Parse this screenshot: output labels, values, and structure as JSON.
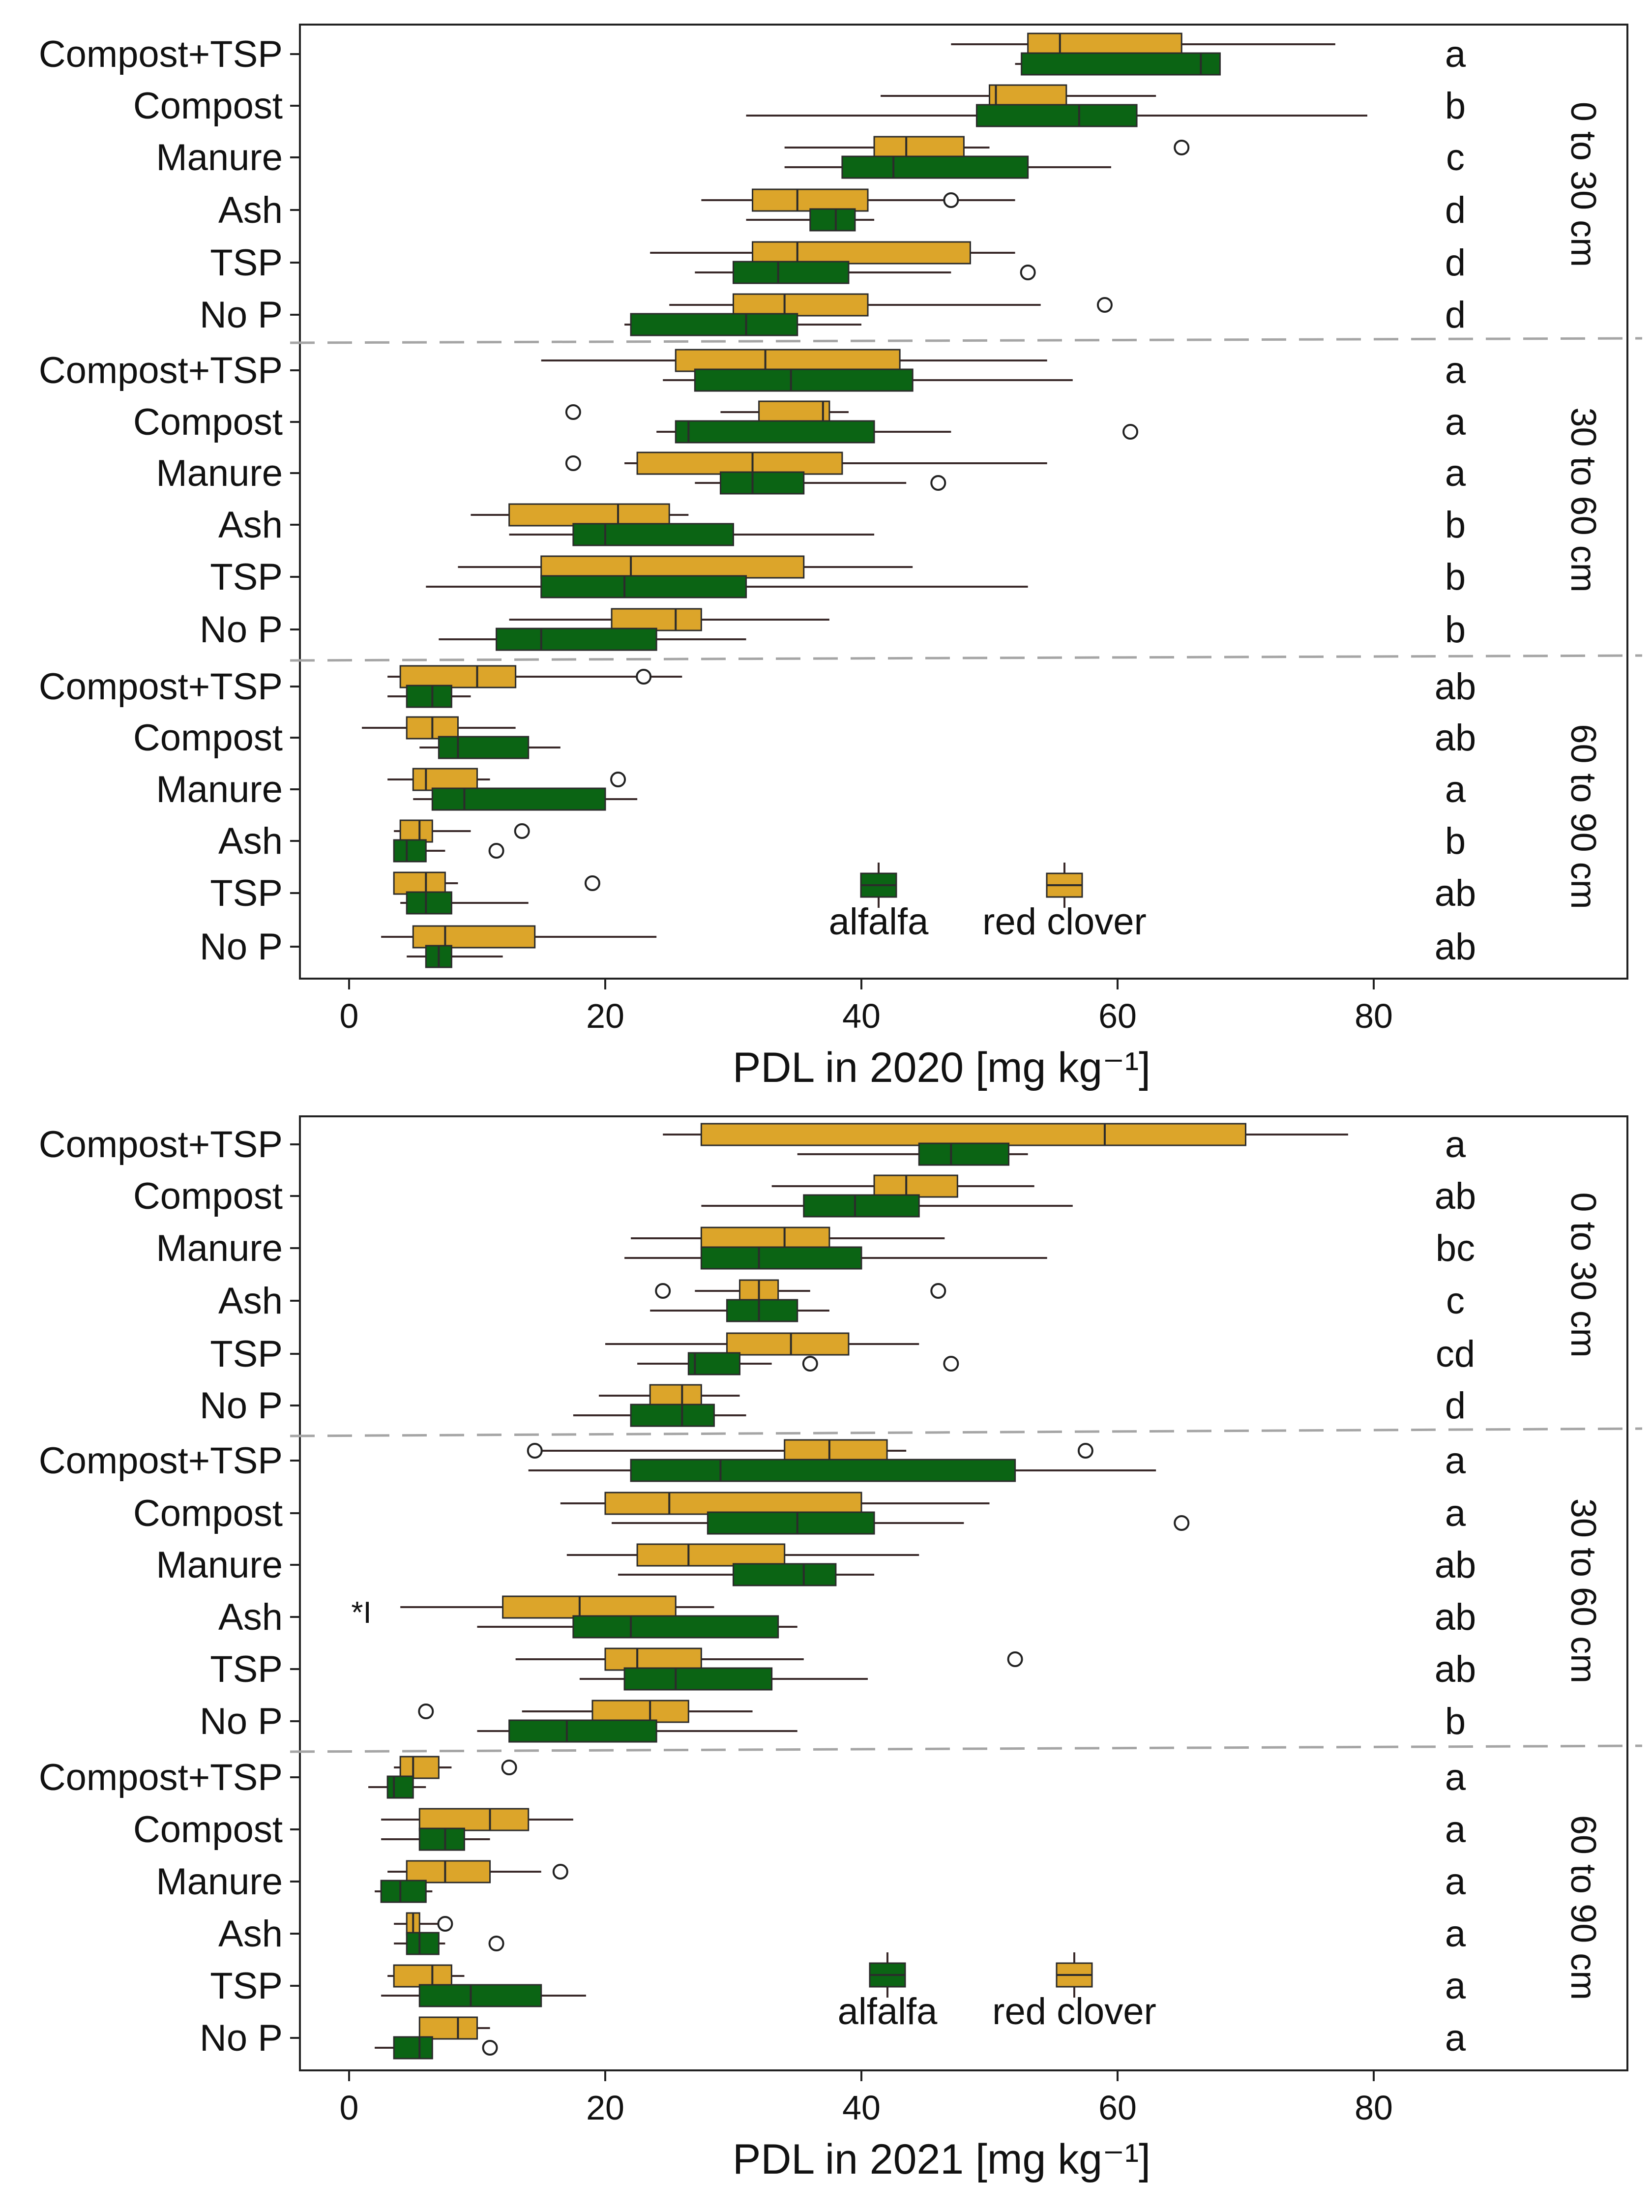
{
  "colors": {
    "alfalfa": "#0b6414",
    "red_clover": "#dca52a",
    "box_outline": "#2b2b2b",
    "whisker": "#3a2a2a",
    "dashed_separator": "#a5a5a5",
    "panel_border": "#222222"
  },
  "chart_data": [
    {
      "type": "boxplot",
      "orientation": "horizontal",
      "xlabel": "PDL in 2020 [mg kg⁻¹]",
      "xlim": [
        -5,
        100
      ],
      "xticks": [
        0,
        20,
        40,
        60,
        80
      ],
      "grid": false,
      "legend": {
        "position": "bottom-right",
        "entries": [
          "alfalfa",
          "red clover"
        ]
      },
      "categories": [
        "Compost+TSP",
        "Compost",
        "Manure",
        "Ash",
        "TSP",
        "No P"
      ],
      "depth_groups": [
        {
          "label": "0 to 30 cm",
          "letters": [
            "a",
            "b",
            "c",
            "d",
            "d",
            "d"
          ],
          "alfalfa": [
            {
              "whislo": 52,
              "q1": 52.5,
              "med": 66.5,
              "q3": 68,
              "whishi": 68,
              "fliers": []
            },
            {
              "whislo": 31,
              "q1": 49,
              "med": 57,
              "q3": 61.5,
              "whishi": 79.5,
              "fliers": []
            },
            {
              "whislo": 34,
              "q1": 38.5,
              "med": 42.5,
              "q3": 53,
              "whishi": 59.5,
              "fliers": []
            },
            {
              "whislo": 31,
              "q1": 36,
              "med": 38,
              "q3": 39.5,
              "whishi": 41,
              "fliers": []
            },
            {
              "whislo": 27,
              "q1": 30,
              "med": 33.5,
              "q3": 39,
              "whishi": 47,
              "fliers": [
                53
              ]
            },
            {
              "whislo": 21.5,
              "q1": 22,
              "med": 31,
              "q3": 35,
              "whishi": 40,
              "fliers": []
            }
          ],
          "red_clover": [
            {
              "whislo": 47,
              "q1": 53,
              "med": 55.5,
              "q3": 65,
              "whishi": 77,
              "fliers": []
            },
            {
              "whislo": 41.5,
              "q1": 50,
              "med": 50.5,
              "q3": 56,
              "whishi": 63,
              "fliers": []
            },
            {
              "whislo": 34,
              "q1": 41,
              "med": 43.5,
              "q3": 48,
              "whishi": 50,
              "fliers": [
                65
              ]
            },
            {
              "whislo": 27.5,
              "q1": 31.5,
              "med": 35,
              "q3": 40.5,
              "whishi": 52,
              "fliers": [
                47
              ]
            },
            {
              "whislo": 23.5,
              "q1": 31.5,
              "med": 35,
              "q3": 48.5,
              "whishi": 52,
              "fliers": []
            },
            {
              "whislo": 25,
              "q1": 30,
              "med": 34,
              "q3": 40.5,
              "whishi": 54,
              "fliers": [
                59
              ]
            }
          ]
        },
        {
          "label": "30 to 60 cm",
          "letters": [
            "a",
            "a",
            "a",
            "b",
            "b",
            "b"
          ],
          "alfalfa": [
            {
              "whislo": 24.5,
              "q1": 27,
              "med": 34.5,
              "q3": 44,
              "whishi": 56.5,
              "fliers": []
            },
            {
              "whislo": 24,
              "q1": 25.5,
              "med": 26.5,
              "q3": 41,
              "whishi": 47,
              "fliers": [
                61
              ]
            },
            {
              "whislo": 27,
              "q1": 29,
              "med": 31.5,
              "q3": 35.5,
              "whishi": 43.5,
              "fliers": [
                46
              ]
            },
            {
              "whislo": 12.5,
              "q1": 17.5,
              "med": 20,
              "q3": 30,
              "whishi": 41,
              "fliers": []
            },
            {
              "whislo": 6,
              "q1": 15,
              "med": 21.5,
              "q3": 31,
              "whishi": 53,
              "fliers": []
            },
            {
              "whislo": 7,
              "q1": 11.5,
              "med": 15,
              "q3": 24,
              "whishi": 31,
              "fliers": []
            }
          ],
          "red_clover": [
            {
              "whislo": 15,
              "q1": 25.5,
              "med": 32.5,
              "q3": 43,
              "whishi": 54.5,
              "fliers": []
            },
            {
              "whislo": 29,
              "q1": 32,
              "med": 37,
              "q3": 37.5,
              "whishi": 39,
              "fliers": [
                17.5
              ]
            },
            {
              "whislo": 21.5,
              "q1": 22.5,
              "med": 31.5,
              "q3": 38.5,
              "whishi": 54.5,
              "fliers": [
                17.5
              ]
            },
            {
              "whislo": 9.5,
              "q1": 12.5,
              "med": 21,
              "q3": 25,
              "whishi": 26.5,
              "fliers": []
            },
            {
              "whislo": 8.5,
              "q1": 15,
              "med": 22,
              "q3": 35.5,
              "whishi": 44,
              "fliers": []
            },
            {
              "whislo": 12.5,
              "q1": 20.5,
              "med": 25.5,
              "q3": 27.5,
              "whishi": 37.5,
              "fliers": []
            }
          ]
        },
        {
          "label": "60 to 90 cm",
          "letters": [
            "ab",
            "ab",
            "a",
            "b",
            "ab",
            "ab"
          ],
          "alfalfa": [
            {
              "whislo": 3,
              "q1": 4.5,
              "med": 6.5,
              "q3": 8,
              "whishi": 9.5,
              "fliers": []
            },
            {
              "whislo": 5.5,
              "q1": 7,
              "med": 8.5,
              "q3": 14,
              "whishi": 16.5,
              "fliers": []
            },
            {
              "whislo": 5,
              "q1": 6.5,
              "med": 9,
              "q3": 20,
              "whishi": 22.5,
              "fliers": []
            },
            {
              "whislo": 3.5,
              "q1": 3.5,
              "med": 4.5,
              "q3": 6,
              "whishi": 7.5,
              "fliers": [
                11.5
              ]
            },
            {
              "whislo": 4,
              "q1": 4.5,
              "med": 6,
              "q3": 8,
              "whishi": 14,
              "fliers": []
            },
            {
              "whislo": 4.5,
              "q1": 6,
              "med": 7,
              "q3": 8,
              "whishi": 12,
              "fliers": []
            }
          ],
          "red_clover": [
            {
              "whislo": 3,
              "q1": 4,
              "med": 10,
              "q3": 13,
              "whishi": 26,
              "fliers": [
                23
              ]
            },
            {
              "whislo": 1,
              "q1": 4.5,
              "med": 6.5,
              "q3": 8.5,
              "whishi": 13,
              "fliers": []
            },
            {
              "whislo": 3,
              "q1": 5,
              "med": 6,
              "q3": 10,
              "whishi": 11,
              "fliers": [
                21
              ]
            },
            {
              "whislo": 3.5,
              "q1": 4,
              "med": 5.5,
              "q3": 6.5,
              "whishi": 9.5,
              "fliers": [
                13.5
              ]
            },
            {
              "whislo": 3.5,
              "q1": 3.5,
              "med": 6,
              "q3": 7.5,
              "whishi": 8.5,
              "fliers": [
                19
              ]
            },
            {
              "whislo": 2.5,
              "q1": 5,
              "med": 7.5,
              "q3": 14.5,
              "whishi": 24,
              "fliers": []
            }
          ]
        }
      ]
    },
    {
      "type": "boxplot",
      "orientation": "horizontal",
      "xlabel": "PDL in 2021 [mg kg⁻¹]",
      "xlim": [
        -5,
        100
      ],
      "xticks": [
        0,
        20,
        40,
        60,
        80
      ],
      "grid": false,
      "legend": {
        "position": "bottom-right",
        "entries": [
          "alfalfa",
          "red clover"
        ]
      },
      "annotation": "*I",
      "categories": [
        "Compost+TSP",
        "Compost",
        "Manure",
        "Ash",
        "TSP",
        "No P"
      ],
      "depth_groups": [
        {
          "label": "0 to 30 cm",
          "letters": [
            "a",
            "ab",
            "bc",
            "c",
            "cd",
            "d"
          ],
          "alfalfa": [
            {
              "whislo": 35,
              "q1": 44.5,
              "med": 47,
              "q3": 51.5,
              "whishi": 53,
              "fliers": []
            },
            {
              "whislo": 27.5,
              "q1": 35.5,
              "med": 39.5,
              "q3": 44.5,
              "whishi": 56.5,
              "fliers": []
            },
            {
              "whislo": 21.5,
              "q1": 27.5,
              "med": 32,
              "q3": 40,
              "whishi": 54.5,
              "fliers": []
            },
            {
              "whislo": 23.5,
              "q1": 29.5,
              "med": 32,
              "q3": 35,
              "whishi": 37.5,
              "fliers": []
            },
            {
              "whislo": 22.5,
              "q1": 26.5,
              "med": 27,
              "q3": 30.5,
              "whishi": 33,
              "fliers": [
                36,
                47
              ]
            },
            {
              "whislo": 17.5,
              "q1": 22,
              "med": 26,
              "q3": 28.5,
              "whishi": 31,
              "fliers": []
            }
          ],
          "red_clover": [
            {
              "whislo": 24.5,
              "q1": 27.5,
              "med": 59,
              "q3": 70,
              "whishi": 78,
              "fliers": []
            },
            {
              "whislo": 33,
              "q1": 41,
              "med": 43.5,
              "q3": 47.5,
              "whishi": 53.5,
              "fliers": []
            },
            {
              "whislo": 22,
              "q1": 27.5,
              "med": 34,
              "q3": 37.5,
              "whishi": 46.5,
              "fliers": []
            },
            {
              "whislo": 27,
              "q1": 30.5,
              "med": 32,
              "q3": 33.5,
              "whishi": 36,
              "fliers": [
                24.5,
                46
              ]
            },
            {
              "whislo": 20,
              "q1": 29.5,
              "med": 34.5,
              "q3": 39,
              "whishi": 44.5,
              "fliers": []
            },
            {
              "whislo": 19.5,
              "q1": 23.5,
              "med": 26,
              "q3": 27.5,
              "whishi": 30.5,
              "fliers": []
            }
          ]
        },
        {
          "label": "30 to 60 cm",
          "letters": [
            "a",
            "a",
            "ab",
            "ab",
            "ab",
            "b"
          ],
          "alfalfa": [
            {
              "whislo": 14,
              "q1": 22,
              "med": 29,
              "q3": 52,
              "whishi": 63,
              "fliers": []
            },
            {
              "whislo": 20.5,
              "q1": 28,
              "med": 35,
              "q3": 41,
              "whishi": 48,
              "fliers": [
                65
              ]
            },
            {
              "whislo": 21,
              "q1": 30,
              "med": 35.5,
              "q3": 38,
              "whishi": 41,
              "fliers": []
            },
            {
              "whislo": 10,
              "q1": 17.5,
              "med": 22,
              "q3": 33.5,
              "whishi": 35,
              "fliers": []
            },
            {
              "whislo": 18,
              "q1": 21.5,
              "med": 25.5,
              "q3": 33,
              "whishi": 40.5,
              "fliers": []
            },
            {
              "whislo": 10,
              "q1": 12.5,
              "med": 17,
              "q3": 24,
              "whishi": 35,
              "fliers": []
            }
          ],
          "red_clover": [
            {
              "whislo": 14.5,
              "q1": 34,
              "med": 37.5,
              "q3": 42,
              "whishi": 43.5,
              "fliers": [
                14.5,
                57.5
              ]
            },
            {
              "whislo": 16.5,
              "q1": 20,
              "med": 25,
              "q3": 40,
              "whishi": 50,
              "fliers": []
            },
            {
              "whislo": 17,
              "q1": 22.5,
              "med": 26.5,
              "q3": 34,
              "whishi": 44.5,
              "fliers": []
            },
            {
              "whislo": 4,
              "q1": 12,
              "med": 18,
              "q3": 25.5,
              "whishi": 28.5,
              "fliers": []
            },
            {
              "whislo": 13,
              "q1": 20,
              "med": 22.5,
              "q3": 27.5,
              "whishi": 35.5,
              "fliers": [
                52
              ]
            },
            {
              "whislo": 13.5,
              "q1": 19,
              "med": 23.5,
              "q3": 26.5,
              "whishi": 31.5,
              "fliers": [
                6
              ]
            }
          ]
        },
        {
          "label": "60 to 90 cm",
          "letters": [
            "a",
            "a",
            "a",
            "a",
            "a",
            "a"
          ],
          "alfalfa": [
            {
              "whislo": 1.5,
              "q1": 3,
              "med": 3.5,
              "q3": 5,
              "whishi": 6,
              "fliers": []
            },
            {
              "whislo": 2.5,
              "q1": 5.5,
              "med": 7.5,
              "q3": 9,
              "whishi": 11,
              "fliers": []
            },
            {
              "whislo": 2,
              "q1": 2.5,
              "med": 4,
              "q3": 6,
              "whishi": 6.5,
              "fliers": []
            },
            {
              "whislo": 3.5,
              "q1": 4.5,
              "med": 5.5,
              "q3": 7,
              "whishi": 7.5,
              "fliers": [
                11.5
              ]
            },
            {
              "whislo": 2.5,
              "q1": 5.5,
              "med": 9.5,
              "q3": 15,
              "whishi": 18.5,
              "fliers": []
            },
            {
              "whislo": 2,
              "q1": 3.5,
              "med": 5.5,
              "q3": 6.5,
              "whishi": 6.5,
              "fliers": [
                11
              ]
            }
          ],
          "red_clover": [
            {
              "whislo": 3.5,
              "q1": 4,
              "med": 5,
              "q3": 7,
              "whishi": 8,
              "fliers": [
                12.5
              ]
            },
            {
              "whislo": 2.5,
              "q1": 5.5,
              "med": 11,
              "q3": 14,
              "whishi": 17.5,
              "fliers": []
            },
            {
              "whislo": 3,
              "q1": 4.5,
              "med": 7.5,
              "q3": 11,
              "whishi": 15,
              "fliers": [
                16.5
              ]
            },
            {
              "whislo": 3.5,
              "q1": 4.5,
              "med": 5,
              "q3": 5.5,
              "whishi": 7,
              "fliers": [
                7.5
              ]
            },
            {
              "whislo": 3,
              "q1": 3.5,
              "med": 6.5,
              "q3": 8,
              "whishi": 9,
              "fliers": []
            },
            {
              "whislo": 5.5,
              "q1": 5.5,
              "med": 8.5,
              "q3": 10,
              "whishi": 11,
              "fliers": []
            }
          ]
        }
      ]
    }
  ]
}
